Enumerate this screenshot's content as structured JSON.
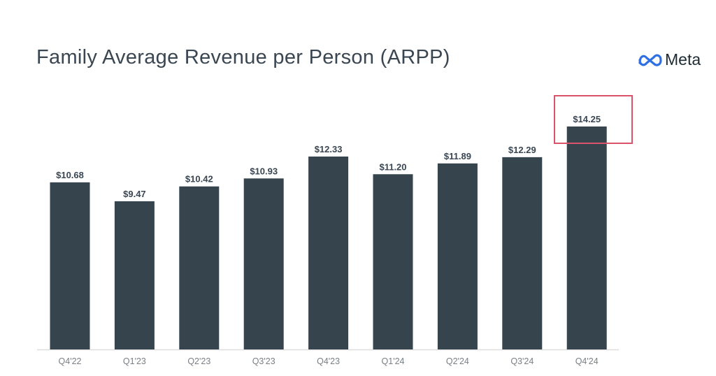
{
  "title": "Family Average Revenue per Person (ARPP)",
  "logo": {
    "text": "Meta",
    "icon": "meta-infinity-icon"
  },
  "colors": {
    "bar": "#36444e",
    "highlight": "#d9546a",
    "axis": "#dddddd",
    "logo_blue": "#2f6fe4"
  },
  "chart_data": {
    "type": "bar",
    "title": "Family Average Revenue per Person (ARPP)",
    "xlabel": "",
    "ylabel": "",
    "categories": [
      "Q4'22",
      "Q1'23",
      "Q2'23",
      "Q3'23",
      "Q4'23",
      "Q1'24",
      "Q2'24",
      "Q3'24",
      "Q4'24"
    ],
    "values": [
      10.68,
      9.47,
      10.42,
      10.93,
      12.33,
      11.2,
      11.89,
      12.29,
      14.25
    ],
    "labels": [
      "$10.68",
      "$9.47",
      "$10.42",
      "$10.93",
      "$12.33",
      "$11.20",
      "$11.89",
      "$12.29",
      "$14.25"
    ],
    "ylim": [
      0,
      14.25
    ],
    "grid": false,
    "highlighted_category": "Q4'24"
  }
}
